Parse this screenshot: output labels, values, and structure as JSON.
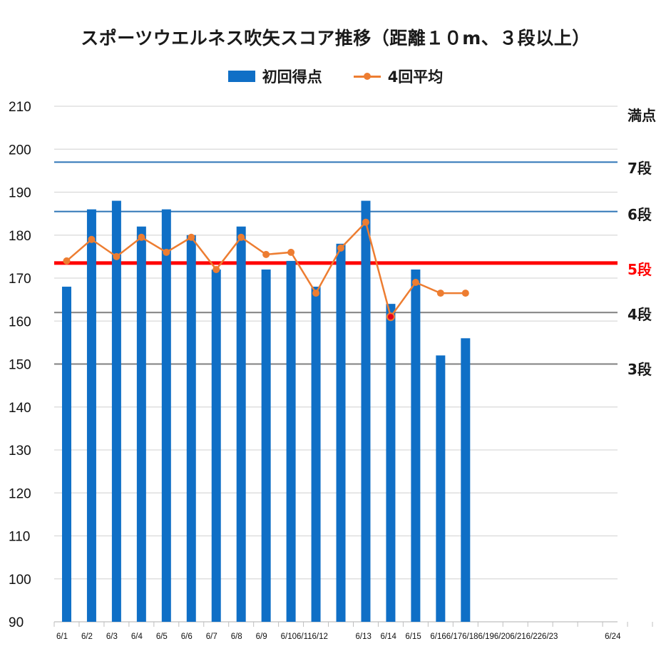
{
  "chart_data": {
    "type": "bar",
    "title": "スポーツウエルネス吹矢スコア推移（距離１０m、３段以上）",
    "ylim": [
      90,
      210
    ],
    "ytick_step": 10,
    "grid": true,
    "legend_position": "top-center",
    "categories": [
      "6/1",
      "6/2",
      "6/3",
      "6/4",
      "6/5",
      "6/6",
      "6/7",
      "6/8",
      "6/9",
      "6/10",
      "6/11",
      "6/12",
      "6/13",
      "6/14",
      "6/15",
      "6/16",
      "6/17",
      "6/18",
      "6/19",
      "6/20",
      "6/21",
      "6/22",
      "6/23",
      "6/24"
    ],
    "x_tick_labels": [
      "6/1",
      "6/2",
      "6/3",
      "6/4",
      "6/5",
      "6/6",
      "6/7",
      "6/8",
      "6/9",
      "6/106/116/12",
      "",
      "",
      "6/13",
      "6/14",
      "6/15",
      "6/166/176/186/196/206/216/226/23",
      "",
      "",
      "",
      "",
      "",
      "",
      "6/24"
    ],
    "series": [
      {
        "name": "初回得点",
        "type": "bar",
        "color": "#0f6fc6",
        "values": [
          168,
          186,
          188,
          182,
          186,
          180,
          172,
          182,
          172,
          174,
          168,
          178,
          188,
          164,
          172,
          152,
          156,
          null,
          null,
          null,
          null,
          null,
          null,
          null
        ]
      },
      {
        "name": "4回平均",
        "type": "line",
        "color": "#ed7d31",
        "values": [
          174,
          179,
          175,
          179.5,
          176,
          179.5,
          172,
          179.5,
          175.5,
          176,
          166.5,
          177,
          183,
          161,
          169,
          166.5,
          166.5,
          null,
          null,
          null,
          null,
          null,
          null,
          null
        ],
        "highlight_point": {
          "index": 13,
          "color": "#e8001c"
        }
      }
    ],
    "reference_lines": [
      {
        "label": "満点",
        "value": 210,
        "color": "#d9d9d9",
        "label_color": "#1a1a1a"
      },
      {
        "label": "7段",
        "value": 197,
        "color": "#2e75b6",
        "label_color": "#1a1a1a"
      },
      {
        "label": "6段",
        "value": 185.5,
        "color": "#2e75b6",
        "label_color": "#1a1a1a"
      },
      {
        "label": "5段",
        "value": 173.5,
        "color": "#ff0000",
        "label_color": "#ff0000"
      },
      {
        "label": "4段",
        "value": 162,
        "color": "#808080",
        "label_color": "#1a1a1a"
      },
      {
        "label": "3段",
        "value": 150,
        "color": "#808080",
        "label_color": "#1a1a1a"
      }
    ]
  }
}
